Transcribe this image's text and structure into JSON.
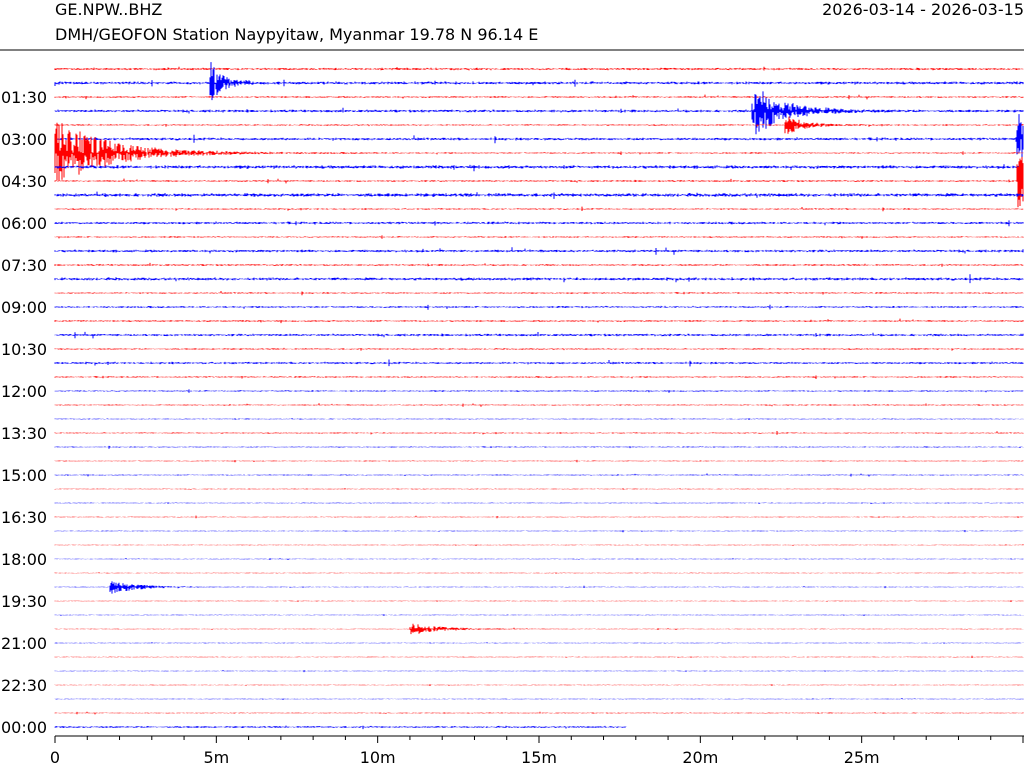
{
  "header": {
    "station_code": "GE.NPW..BHZ",
    "description": "DMH/GEOFON Station Naypyitaw, Myanmar  19.78 N 96.14 E",
    "date_range": "2026-03-14 - 2026-03-15"
  },
  "chart_data": {
    "type": "line",
    "description_type": "helicorder",
    "colors": [
      "#ff0000",
      "#0000ff"
    ],
    "y_tick_labels": [
      "01:30",
      "03:00",
      "04:30",
      "06:00",
      "07:30",
      "09:00",
      "10:30",
      "12:00",
      "13:30",
      "15:00",
      "16:30",
      "18:00",
      "19:30",
      "21:00",
      "22:30",
      "00:00"
    ],
    "x_tick_labels": [
      "0",
      "5m",
      "10m",
      "15m",
      "20m",
      "25m"
    ],
    "xlim_minutes": [
      0,
      30
    ],
    "line_count": 48,
    "last_line_end_minute": 17.7,
    "noise_levels": [
      0.9,
      1.2,
      0.7,
      1.1,
      0.6,
      1.1,
      0.6,
      1.4,
      0.7,
      1.5,
      0.6,
      1.0,
      0.6,
      1.1,
      0.7,
      1.2,
      0.6,
      0.8,
      0.7,
      1.0,
      0.6,
      0.9,
      0.6,
      0.6,
      0.5,
      0.4,
      0.5,
      0.45,
      0.4,
      0.45,
      0.35,
      0.35,
      0.35,
      0.35,
      0.3,
      0.3,
      0.3,
      0.3,
      0.3,
      0.3,
      0.3,
      0.3,
      0.3,
      0.3,
      0.3,
      0.3,
      0.4,
      0.8
    ],
    "events": [
      {
        "line": 1,
        "minute": 4.8,
        "amp": 22,
        "decay": 0.35
      },
      {
        "line": 3,
        "minute": 21.6,
        "amp": 28,
        "decay": 0.9
      },
      {
        "line": 4,
        "minute": 22.6,
        "amp": 12,
        "decay": 0.5
      },
      {
        "line": 5,
        "minute": 29.8,
        "amp": 26,
        "decay": 1.0
      },
      {
        "line": 6,
        "minute": 0.0,
        "amp": 34,
        "decay": 1.6
      },
      {
        "line": 8,
        "minute": 29.8,
        "amp": 28,
        "decay": 1.0
      },
      {
        "line": 37,
        "minute": 1.7,
        "amp": 7,
        "decay": 0.8
      },
      {
        "line": 40,
        "minute": 11.0,
        "amp": 6,
        "decay": 0.9
      }
    ]
  }
}
